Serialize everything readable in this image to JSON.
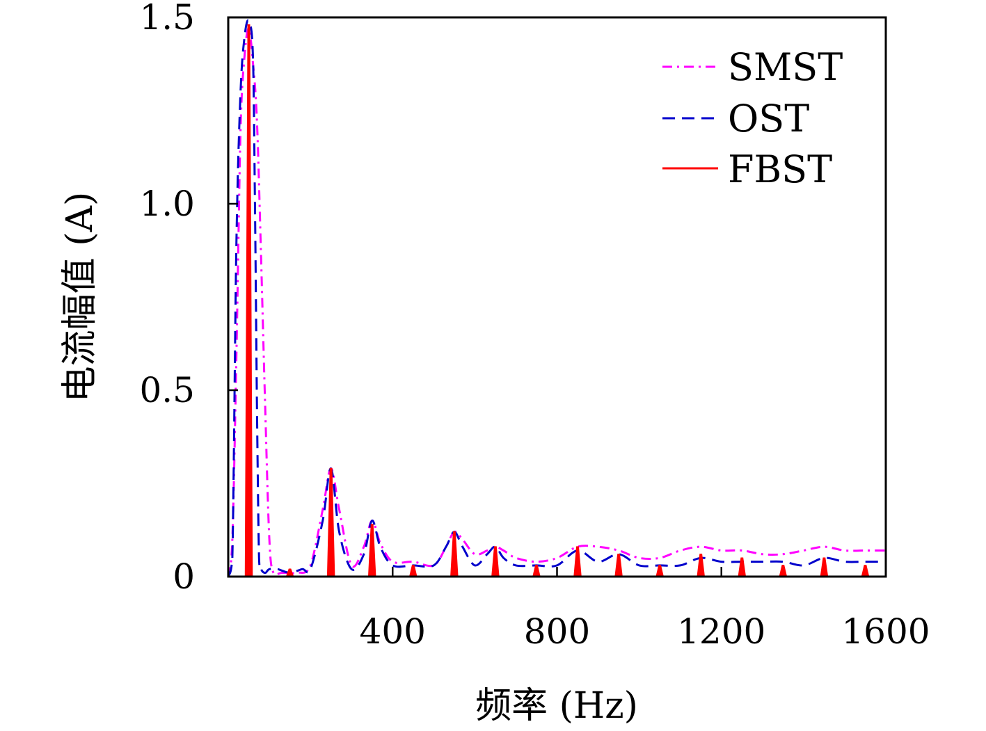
{
  "chart_data": {
    "type": "line",
    "title": "",
    "xlabel": "频率 (Hz)",
    "ylabel": "电流幅值 (A)",
    "xlim": [
      0,
      1600
    ],
    "ylim": [
      0,
      1.5
    ],
    "xticks": [
      400,
      800,
      1200,
      1600
    ],
    "xtick_labels": [
      "400",
      "800",
      "1200",
      "1600"
    ],
    "yticks": [
      0,
      0.5,
      1.0,
      1.5
    ],
    "ytick_labels": [
      "0",
      "0.5",
      "1.0",
      "1.5"
    ],
    "grid": false,
    "legend_position": "top-right",
    "series": [
      {
        "name": "SMST",
        "style": "dash-dot",
        "color": "#ff00ff",
        "x": [
          0,
          10,
          20,
          30,
          40,
          50,
          60,
          70,
          80,
          90,
          100,
          110,
          130,
          150,
          170,
          200,
          230,
          250,
          270,
          300,
          330,
          350,
          370,
          400,
          450,
          500,
          530,
          550,
          570,
          600,
          630,
          650,
          670,
          700,
          750,
          800,
          850,
          900,
          950,
          1000,
          1050,
          1100,
          1150,
          1200,
          1250,
          1300,
          1350,
          1400,
          1450,
          1500,
          1550,
          1600
        ],
        "y": [
          0.0,
          0.1,
          0.6,
          1.2,
          1.4,
          1.47,
          1.38,
          1.22,
          0.85,
          0.45,
          0.1,
          0.01,
          0.01,
          0.01,
          0.01,
          0.03,
          0.18,
          0.29,
          0.18,
          0.03,
          0.08,
          0.15,
          0.09,
          0.04,
          0.04,
          0.03,
          0.08,
          0.12,
          0.1,
          0.06,
          0.07,
          0.08,
          0.07,
          0.05,
          0.04,
          0.05,
          0.08,
          0.08,
          0.07,
          0.05,
          0.05,
          0.07,
          0.08,
          0.07,
          0.07,
          0.06,
          0.06,
          0.07,
          0.08,
          0.07,
          0.07,
          0.07
        ]
      },
      {
        "name": "OST",
        "style": "dashed",
        "color": "#0000cc",
        "x": [
          0,
          10,
          20,
          30,
          40,
          50,
          60,
          65,
          70,
          75,
          80,
          90,
          100,
          120,
          150,
          180,
          200,
          230,
          250,
          270,
          300,
          330,
          350,
          370,
          400,
          450,
          500,
          530,
          550,
          570,
          600,
          630,
          650,
          670,
          700,
          750,
          800,
          850,
          900,
          950,
          1000,
          1050,
          1100,
          1150,
          1200,
          1250,
          1300,
          1350,
          1400,
          1450,
          1500,
          1550,
          1600
        ],
        "y": [
          0.0,
          0.05,
          0.9,
          1.3,
          1.45,
          1.49,
          1.4,
          1.0,
          0.45,
          0.05,
          0.02,
          0.01,
          0.02,
          0.02,
          0.01,
          0.02,
          0.02,
          0.15,
          0.29,
          0.12,
          0.02,
          0.06,
          0.15,
          0.08,
          0.03,
          0.03,
          0.03,
          0.08,
          0.12,
          0.08,
          0.03,
          0.06,
          0.08,
          0.05,
          0.03,
          0.03,
          0.03,
          0.07,
          0.04,
          0.06,
          0.03,
          0.03,
          0.03,
          0.05,
          0.04,
          0.04,
          0.04,
          0.04,
          0.03,
          0.05,
          0.04,
          0.04,
          0.04
        ]
      },
      {
        "name": "FBST",
        "style": "solid-spikes",
        "color": "#ff0000",
        "x": [
          50,
          150,
          250,
          350,
          450,
          550,
          650,
          750,
          850,
          950,
          1050,
          1150,
          1250,
          1350,
          1450,
          1550
        ],
        "y": [
          1.48,
          0.02,
          0.29,
          0.14,
          0.03,
          0.12,
          0.08,
          0.03,
          0.08,
          0.06,
          0.03,
          0.06,
          0.05,
          0.03,
          0.05,
          0.03
        ]
      }
    ]
  }
}
